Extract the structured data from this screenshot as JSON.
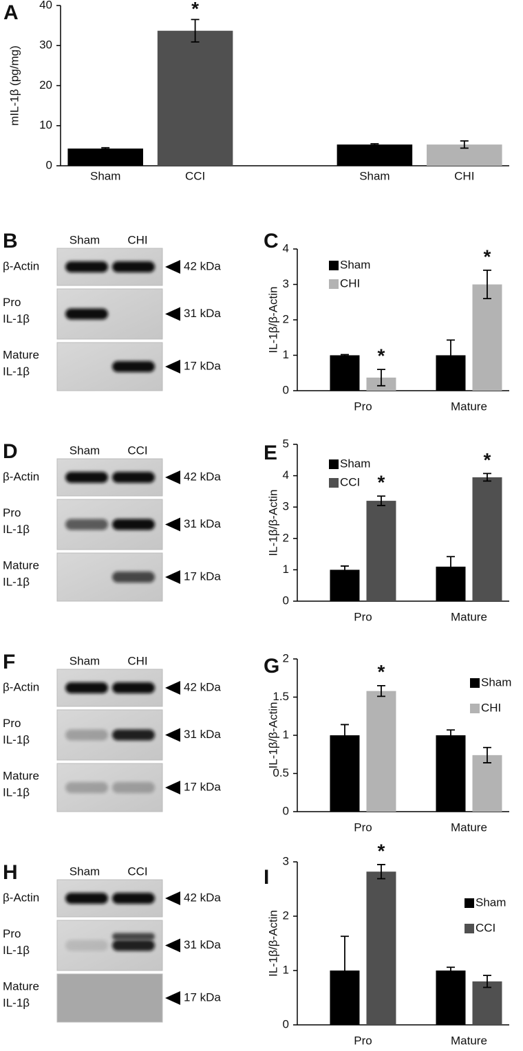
{
  "chart_data": [
    {
      "type": "bar",
      "panel": "A",
      "y_label": "mIL-1β (pg/mg)",
      "categories": [
        "Sham",
        "CCI",
        null,
        "Sham",
        "CHI"
      ],
      "values": [
        4.3,
        33.7,
        null,
        5.3,
        5.3
      ],
      "errors": [
        0.2,
        2.8,
        null,
        0.2,
        0.9
      ],
      "colors": [
        "#000000",
        "#505050",
        null,
        "#000000",
        "#b3b3b3"
      ],
      "annotations": [
        null,
        "*",
        null,
        null,
        null
      ],
      "ylim": [
        0,
        40
      ],
      "yticks": [
        0,
        10,
        20,
        30,
        40
      ]
    },
    {
      "type": "bar",
      "panel": "C",
      "y_label": "IL-1β/β-Actin",
      "categories": [
        "Pro",
        "Mature"
      ],
      "legend": "upper left",
      "series": [
        {
          "name": "Sham",
          "color": "#000000",
          "values": [
            1.0,
            1.0
          ],
          "errors": [
            0.02,
            0.43
          ],
          "annotations": [
            null,
            null
          ]
        },
        {
          "name": "CHI",
          "color": "#b3b3b3",
          "values": [
            0.37,
            3.0
          ],
          "errors": [
            0.23,
            0.4
          ],
          "annotations": [
            "*",
            "*"
          ]
        }
      ],
      "ylim": [
        0,
        4
      ],
      "yticks": [
        0,
        1,
        2,
        3,
        4
      ]
    },
    {
      "type": "bar",
      "panel": "E",
      "y_label": "IL-1β/β-Actin",
      "categories": [
        "Pro",
        "Mature"
      ],
      "legend": "upper left",
      "series": [
        {
          "name": "Sham",
          "color": "#000000",
          "values": [
            1.0,
            1.1
          ],
          "errors": [
            0.12,
            0.32
          ],
          "annotations": [
            null,
            null
          ]
        },
        {
          "name": "CCI",
          "color": "#505050",
          "values": [
            3.2,
            3.95
          ],
          "errors": [
            0.15,
            0.12
          ],
          "annotations": [
            "*",
            "*"
          ]
        }
      ],
      "ylim": [
        0,
        5
      ],
      "yticks": [
        0,
        1,
        2,
        3,
        4,
        5
      ]
    },
    {
      "type": "bar",
      "panel": "G",
      "y_label": "IL-1β/β-Actin",
      "categories": [
        "Pro",
        "Mature"
      ],
      "legend": "upper right",
      "series": [
        {
          "name": "Sham",
          "color": "#000000",
          "values": [
            1.0,
            1.0
          ],
          "errors": [
            0.14,
            0.07
          ],
          "annotations": [
            null,
            null
          ]
        },
        {
          "name": "CHI",
          "color": "#b3b3b3",
          "values": [
            1.58,
            0.74
          ],
          "errors": [
            0.07,
            0.1
          ],
          "annotations": [
            "*",
            null
          ]
        }
      ],
      "ylim": [
        0,
        2
      ],
      "yticks": [
        0,
        0.5,
        1,
        1.5,
        2
      ]
    },
    {
      "type": "bar",
      "panel": "I",
      "y_label": "IL-1β/β-Actin",
      "categories": [
        "Pro",
        "Mature"
      ],
      "legend": "upper right",
      "series": [
        {
          "name": "Sham",
          "color": "#000000",
          "values": [
            1.0,
            1.0
          ],
          "errors": [
            0.63,
            0.06
          ],
          "annotations": [
            null,
            null
          ]
        },
        {
          "name": "CCI",
          "color": "#505050",
          "values": [
            2.82,
            0.8
          ],
          "errors": [
            0.13,
            0.11
          ],
          "annotations": [
            "*",
            null
          ]
        }
      ],
      "ylim": [
        0,
        3
      ],
      "yticks": [
        0,
        1,
        2,
        3
      ]
    }
  ],
  "blots": [
    {
      "panel": "B",
      "columns": [
        "Sham",
        "CHI"
      ],
      "rows": [
        {
          "label": [
            "β-Actin"
          ],
          "size": "42 kDa"
        },
        {
          "label": [
            "Pro",
            "IL-1β"
          ],
          "size": "31 kDa"
        },
        {
          "label": [
            "Mature",
            "IL-1β"
          ],
          "size": "17 kDa"
        }
      ]
    },
    {
      "panel": "D",
      "columns": [
        "Sham",
        "CCI"
      ],
      "rows": [
        {
          "label": [
            "β-Actin"
          ],
          "size": "42 kDa"
        },
        {
          "label": [
            "Pro",
            "IL-1β"
          ],
          "size": "31 kDa"
        },
        {
          "label": [
            "Mature",
            "IL-1β"
          ],
          "size": "17 kDa"
        }
      ]
    },
    {
      "panel": "F",
      "columns": [
        "Sham",
        "CHI"
      ],
      "rows": [
        {
          "label": [
            "β-Actin"
          ],
          "size": "42 kDa"
        },
        {
          "label": [
            "Pro",
            "IL-1β"
          ],
          "size": "31 kDa"
        },
        {
          "label": [
            "Mature",
            "IL-1β"
          ],
          "size": "17 kDa"
        }
      ]
    },
    {
      "panel": "H",
      "columns": [
        "Sham",
        "CCI"
      ],
      "rows": [
        {
          "label": [
            "β-Actin"
          ],
          "size": "42 kDa"
        },
        {
          "label": [
            "Pro",
            "IL-1β"
          ],
          "size": "31 kDa"
        },
        {
          "label": [
            "Mature",
            "IL-1β"
          ],
          "size": "17 kDa"
        }
      ]
    }
  ]
}
